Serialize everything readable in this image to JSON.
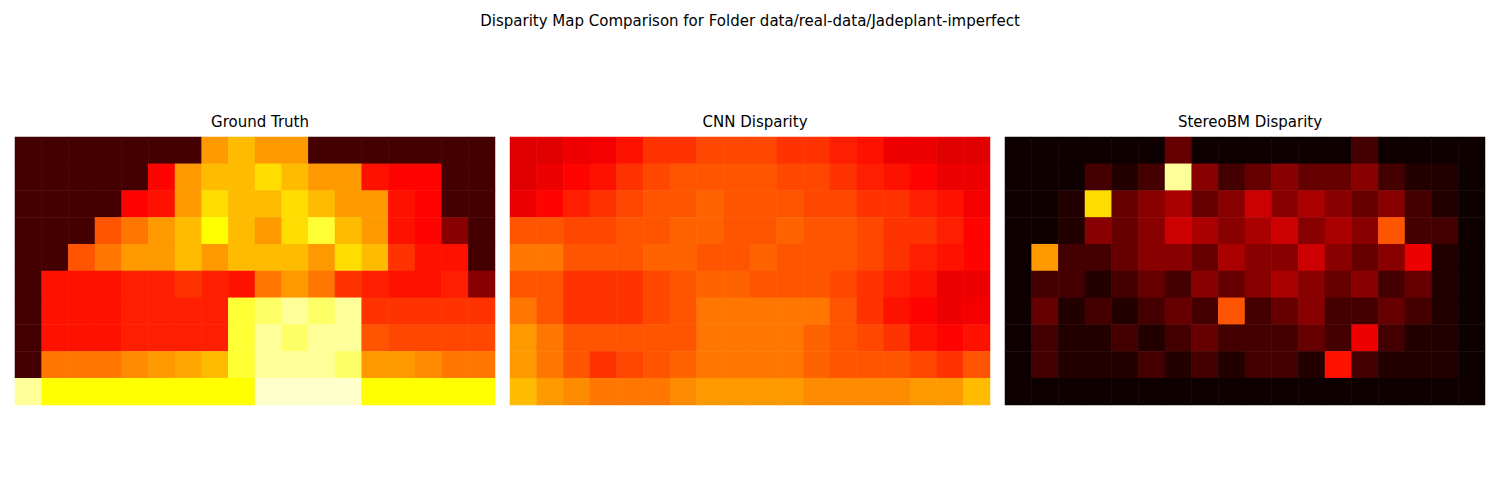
{
  "title": "Disparity Map Comparison for Folder data/real-data/Jadeplant-imperfect",
  "chart_data": [
    {
      "type": "heatmap",
      "title": "Ground Truth",
      "tick_labels": false,
      "clim": [
        0,
        1
      ],
      "cells": [
        [
          0.1,
          0.1,
          0.1,
          0.1,
          0.1,
          0.1,
          0.1,
          0.6,
          0.65,
          0.6,
          0.6,
          0.1,
          0.1,
          0.1,
          0.1,
          0.1,
          0.1,
          0.1
        ],
        [
          0.1,
          0.1,
          0.1,
          0.1,
          0.1,
          0.38,
          0.6,
          0.65,
          0.65,
          0.7,
          0.65,
          0.6,
          0.6,
          0.4,
          0.38,
          0.38,
          0.1,
          0.1
        ],
        [
          0.1,
          0.1,
          0.1,
          0.1,
          0.38,
          0.4,
          0.6,
          0.7,
          0.65,
          0.65,
          0.7,
          0.65,
          0.6,
          0.6,
          0.4,
          0.38,
          0.1,
          0.1
        ],
        [
          0.1,
          0.1,
          0.1,
          0.5,
          0.55,
          0.6,
          0.65,
          0.75,
          0.65,
          0.6,
          0.7,
          0.8,
          0.65,
          0.6,
          0.4,
          0.38,
          0.2,
          0.1
        ],
        [
          0.1,
          0.1,
          0.5,
          0.55,
          0.6,
          0.6,
          0.65,
          0.6,
          0.65,
          0.65,
          0.65,
          0.6,
          0.7,
          0.65,
          0.45,
          0.4,
          0.4,
          0.1
        ],
        [
          0.1,
          0.4,
          0.4,
          0.4,
          0.42,
          0.42,
          0.45,
          0.42,
          0.4,
          0.55,
          0.6,
          0.55,
          0.45,
          0.42,
          0.4,
          0.4,
          0.42,
          0.2
        ],
        [
          0.1,
          0.4,
          0.4,
          0.4,
          0.42,
          0.42,
          0.42,
          0.42,
          0.8,
          0.85,
          0.9,
          0.85,
          0.9,
          0.45,
          0.45,
          0.45,
          0.45,
          0.45
        ],
        [
          0.1,
          0.4,
          0.4,
          0.4,
          0.42,
          0.42,
          0.42,
          0.42,
          0.8,
          0.9,
          0.85,
          0.9,
          0.9,
          0.5,
          0.48,
          0.48,
          0.48,
          0.48
        ],
        [
          0.1,
          0.55,
          0.55,
          0.55,
          0.58,
          0.6,
          0.62,
          0.65,
          0.8,
          0.9,
          0.9,
          0.9,
          0.85,
          0.6,
          0.6,
          0.58,
          0.55,
          0.55
        ],
        [
          0.9,
          0.75,
          0.75,
          0.75,
          0.75,
          0.75,
          0.75,
          0.75,
          0.75,
          0.95,
          0.95,
          0.95,
          0.95,
          0.75,
          0.75,
          0.75,
          0.75,
          0.75
        ]
      ]
    },
    {
      "type": "heatmap",
      "title": "CNN Disparity",
      "tick_labels": false,
      "clim": [
        0,
        1
      ],
      "cells": [
        [
          0.33,
          0.33,
          0.35,
          0.36,
          0.4,
          0.45,
          0.45,
          0.48,
          0.48,
          0.48,
          0.45,
          0.45,
          0.42,
          0.4,
          0.35,
          0.35,
          0.33,
          0.33
        ],
        [
          0.33,
          0.35,
          0.38,
          0.4,
          0.45,
          0.48,
          0.5,
          0.5,
          0.5,
          0.5,
          0.48,
          0.48,
          0.45,
          0.42,
          0.4,
          0.38,
          0.35,
          0.35
        ],
        [
          0.35,
          0.38,
          0.42,
          0.45,
          0.48,
          0.5,
          0.5,
          0.52,
          0.5,
          0.5,
          0.5,
          0.48,
          0.48,
          0.45,
          0.45,
          0.42,
          0.4,
          0.36
        ],
        [
          0.5,
          0.5,
          0.48,
          0.48,
          0.5,
          0.5,
          0.52,
          0.52,
          0.5,
          0.5,
          0.52,
          0.5,
          0.5,
          0.48,
          0.45,
          0.45,
          0.42,
          0.38
        ],
        [
          0.55,
          0.55,
          0.5,
          0.5,
          0.5,
          0.52,
          0.52,
          0.5,
          0.5,
          0.52,
          0.5,
          0.5,
          0.5,
          0.48,
          0.45,
          0.42,
          0.4,
          0.38
        ],
        [
          0.5,
          0.5,
          0.45,
          0.45,
          0.45,
          0.48,
          0.5,
          0.52,
          0.52,
          0.5,
          0.5,
          0.5,
          0.48,
          0.45,
          0.42,
          0.4,
          0.35,
          0.35
        ],
        [
          0.55,
          0.5,
          0.45,
          0.45,
          0.45,
          0.48,
          0.5,
          0.55,
          0.55,
          0.55,
          0.55,
          0.55,
          0.5,
          0.45,
          0.4,
          0.38,
          0.35,
          0.36
        ],
        [
          0.6,
          0.55,
          0.5,
          0.5,
          0.5,
          0.5,
          0.5,
          0.55,
          0.55,
          0.55,
          0.55,
          0.52,
          0.5,
          0.48,
          0.45,
          0.4,
          0.38,
          0.4
        ],
        [
          0.6,
          0.55,
          0.5,
          0.45,
          0.48,
          0.5,
          0.52,
          0.55,
          0.55,
          0.55,
          0.55,
          0.52,
          0.5,
          0.5,
          0.5,
          0.48,
          0.45,
          0.5
        ],
        [
          0.65,
          0.6,
          0.58,
          0.55,
          0.55,
          0.55,
          0.58,
          0.6,
          0.6,
          0.6,
          0.6,
          0.58,
          0.58,
          0.58,
          0.58,
          0.6,
          0.6,
          0.65
        ]
      ]
    },
    {
      "type": "heatmap",
      "title": "StereoBM Disparity",
      "tick_labels": false,
      "clim": [
        0,
        1
      ],
      "cells": [
        [
          0.02,
          0.02,
          0.02,
          0.02,
          0.02,
          0.02,
          0.15,
          0.02,
          0.02,
          0.02,
          0.02,
          0.02,
          0.02,
          0.1,
          0.02,
          0.02,
          0.02,
          0.02
        ],
        [
          0.02,
          0.02,
          0.02,
          0.1,
          0.05,
          0.1,
          0.9,
          0.2,
          0.1,
          0.15,
          0.2,
          0.15,
          0.15,
          0.2,
          0.1,
          0.05,
          0.05,
          0.02
        ],
        [
          0.02,
          0.02,
          0.05,
          0.7,
          0.15,
          0.2,
          0.25,
          0.15,
          0.2,
          0.3,
          0.2,
          0.25,
          0.2,
          0.15,
          0.2,
          0.1,
          0.05,
          0.02
        ],
        [
          0.02,
          0.02,
          0.05,
          0.2,
          0.15,
          0.2,
          0.3,
          0.25,
          0.2,
          0.25,
          0.3,
          0.2,
          0.25,
          0.2,
          0.5,
          0.1,
          0.1,
          0.02
        ],
        [
          0.02,
          0.6,
          0.1,
          0.1,
          0.15,
          0.2,
          0.2,
          0.15,
          0.25,
          0.2,
          0.2,
          0.3,
          0.2,
          0.15,
          0.2,
          0.35,
          0.05,
          0.02
        ],
        [
          0.02,
          0.1,
          0.1,
          0.05,
          0.1,
          0.15,
          0.1,
          0.2,
          0.15,
          0.2,
          0.25,
          0.2,
          0.15,
          0.2,
          0.1,
          0.15,
          0.05,
          0.02
        ],
        [
          0.02,
          0.15,
          0.05,
          0.1,
          0.05,
          0.1,
          0.15,
          0.1,
          0.5,
          0.1,
          0.15,
          0.2,
          0.1,
          0.1,
          0.15,
          0.1,
          0.05,
          0.02
        ],
        [
          0.02,
          0.1,
          0.05,
          0.05,
          0.1,
          0.05,
          0.1,
          0.15,
          0.1,
          0.1,
          0.1,
          0.15,
          0.1,
          0.35,
          0.1,
          0.05,
          0.05,
          0.02
        ],
        [
          0.02,
          0.1,
          0.05,
          0.05,
          0.05,
          0.1,
          0.05,
          0.1,
          0.05,
          0.1,
          0.1,
          0.05,
          0.4,
          0.1,
          0.05,
          0.05,
          0.05,
          0.02
        ],
        [
          0.02,
          0.02,
          0.02,
          0.02,
          0.02,
          0.02,
          0.02,
          0.02,
          0.02,
          0.02,
          0.02,
          0.02,
          0.02,
          0.02,
          0.02,
          0.02,
          0.02,
          0.02
        ]
      ]
    }
  ]
}
